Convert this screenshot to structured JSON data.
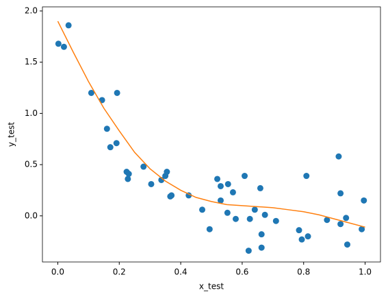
{
  "chart_data": {
    "type": "scatter",
    "xlabel": "x_test",
    "ylabel": "y_test",
    "xlim": [
      -0.05,
      1.05
    ],
    "ylim": [
      -0.45,
      2.04
    ],
    "xticks": [
      {
        "value": 0,
        "label": "0.0"
      },
      0.2,
      0.4,
      0.6,
      0.8,
      {
        "value": 1,
        "label": "1.0"
      }
    ],
    "yticks": [
      {
        "value": 0,
        "label": "0.0"
      },
      0.5,
      {
        "value": 1,
        "label": "1.0"
      },
      1.5,
      {
        "value": 2,
        "label": "2.0"
      }
    ],
    "series": [
      {
        "type": "scatter",
        "color": "#1f77b4",
        "x": [
          0.002,
          0.02,
          0.035,
          0.109,
          0.144,
          0.193,
          0.16,
          0.171,
          0.191,
          0.224,
          0.231,
          0.228,
          0.279,
          0.304,
          0.337,
          0.35,
          0.355,
          0.366,
          0.37,
          0.426,
          0.47,
          0.494,
          0.519,
          0.53,
          0.53,
          0.554,
          0.552,
          0.57,
          0.579,
          0.608,
          0.621,
          0.625,
          0.641,
          0.659,
          0.663,
          0.663,
          0.674,
          0.71,
          0.785,
          0.794,
          0.809,
          0.814,
          0.876,
          0.914,
          0.92,
          0.92,
          0.938,
          0.942,
          0.989,
          0.996
        ],
        "values": [
          1.68,
          1.65,
          1.86,
          1.2,
          1.13,
          1.2,
          0.85,
          0.67,
          0.71,
          0.43,
          0.41,
          0.36,
          0.48,
          0.31,
          0.35,
          0.39,
          0.43,
          0.19,
          0.2,
          0.2,
          0.06,
          -0.13,
          0.36,
          0.29,
          0.15,
          0.31,
          0.03,
          0.23,
          -0.03,
          0.39,
          -0.34,
          -0.03,
          0.06,
          0.27,
          -0.18,
          -0.31,
          0.01,
          -0.05,
          -0.14,
          -0.23,
          0.39,
          -0.2,
          -0.04,
          0.58,
          0.22,
          -0.08,
          -0.02,
          -0.28,
          -0.13,
          0.15
        ]
      },
      {
        "type": "line",
        "color": "#ff7f0e",
        "x": [
          0,
          0.05,
          0.1,
          0.15,
          0.2,
          0.25,
          0.3,
          0.35,
          0.4,
          0.45,
          0.5,
          0.55,
          0.6,
          0.65,
          0.7,
          0.75,
          0.8,
          0.85,
          0.9,
          0.95,
          1.0
        ],
        "values": [
          1.9,
          1.6,
          1.31,
          1.05,
          0.83,
          0.62,
          0.46,
          0.34,
          0.25,
          0.18,
          0.14,
          0.11,
          0.1,
          0.09,
          0.08,
          0.06,
          0.04,
          0.01,
          -0.03,
          -0.07,
          -0.11
        ]
      }
    ]
  }
}
